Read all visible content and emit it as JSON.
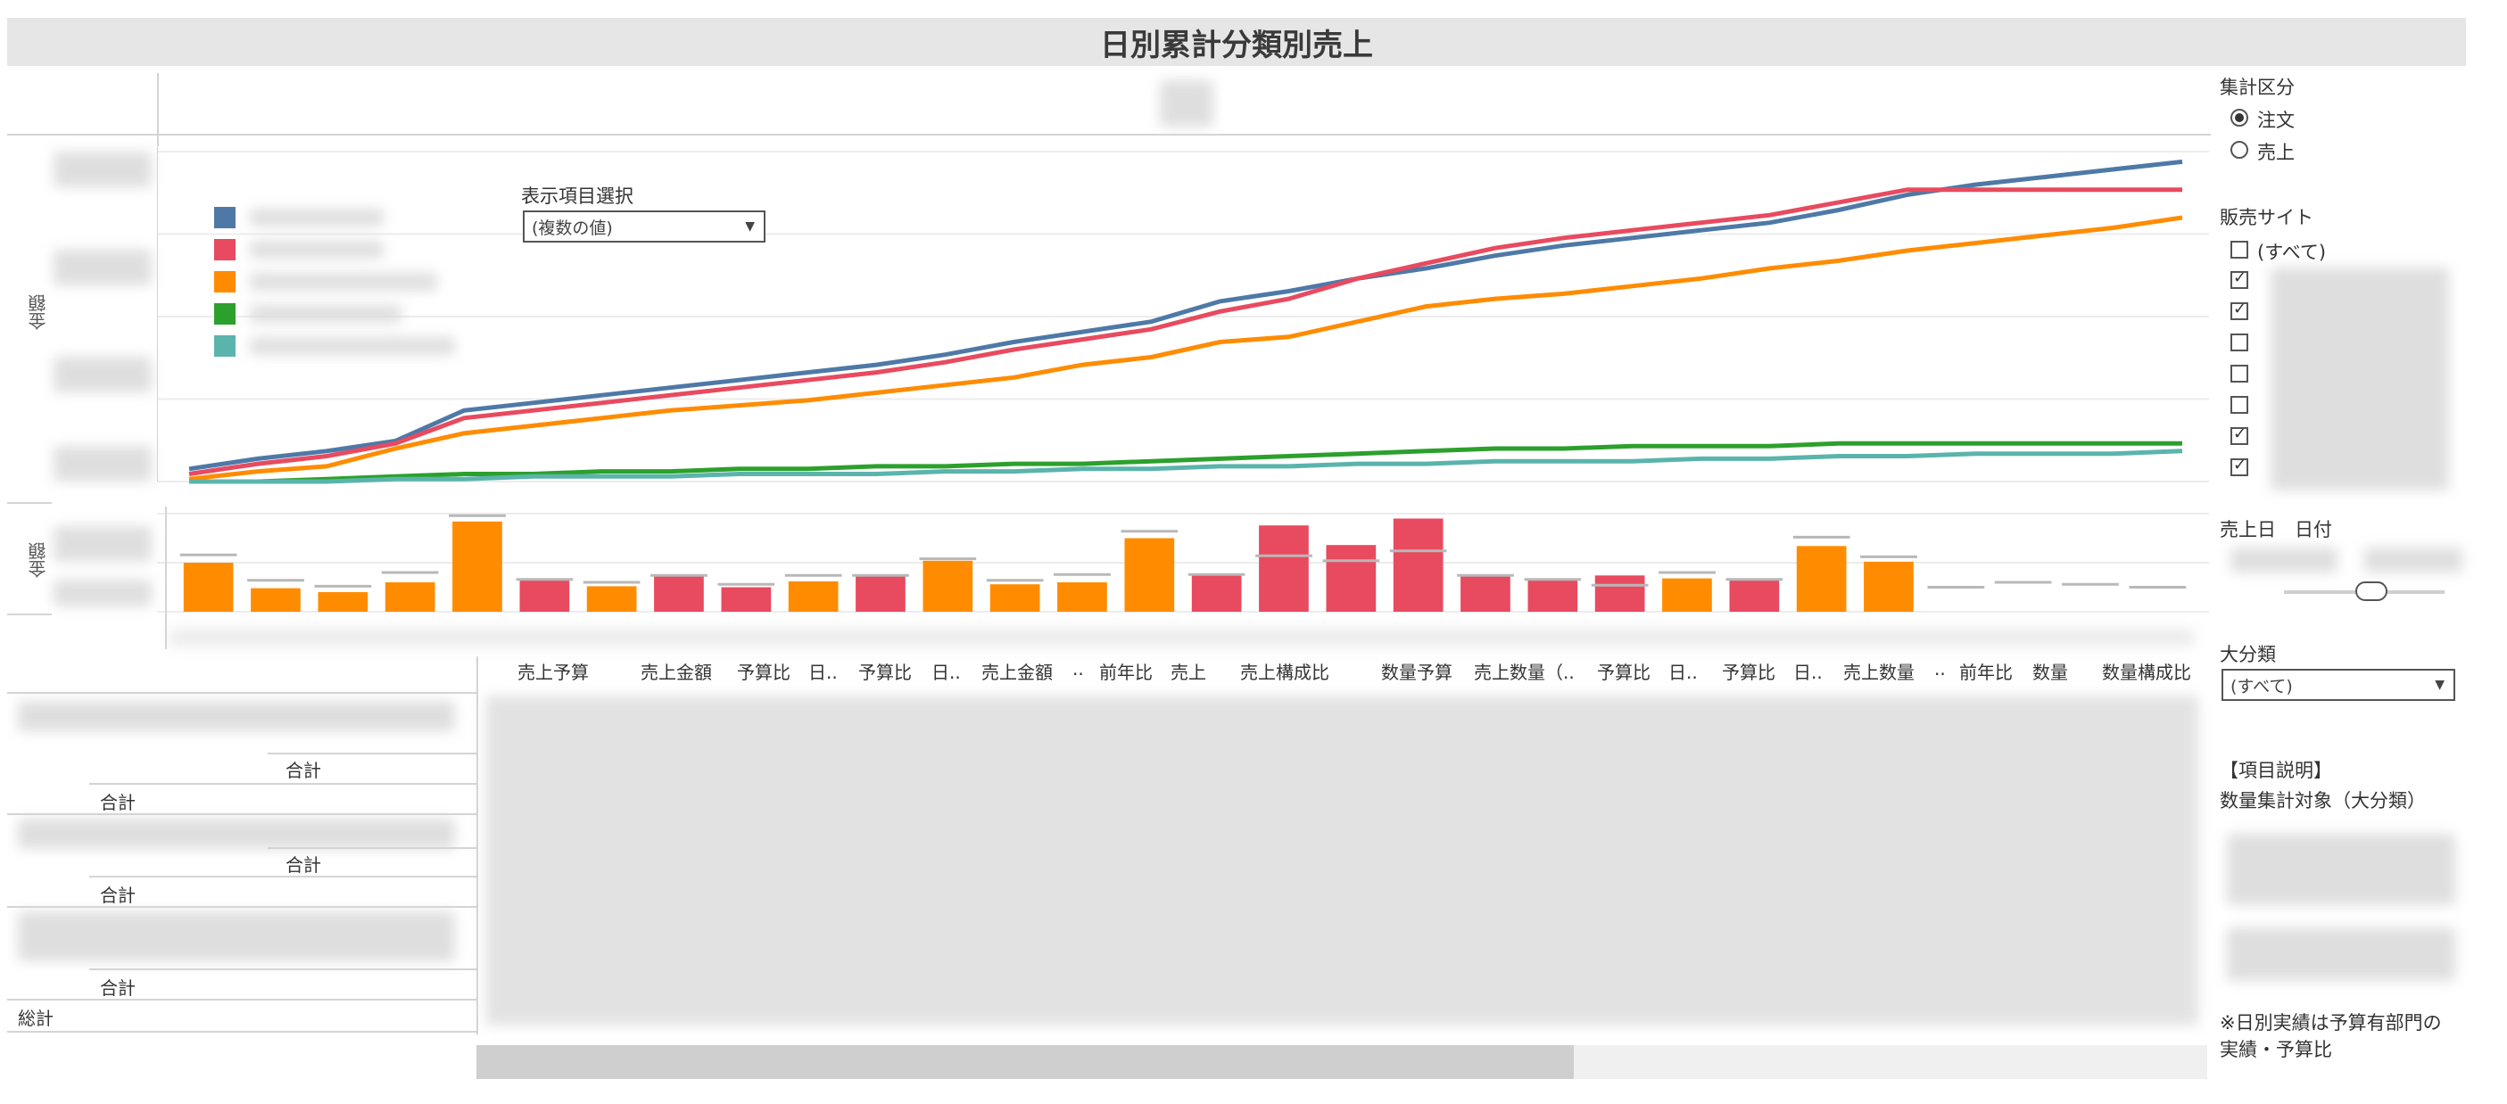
{
  "title": "日別累計分類別売上",
  "chart_top": {
    "y_label": "金額",
    "selector_label": "表示項目選択",
    "selector_value": "(複数の値)",
    "colors": [
      "#4e79a7",
      "#e84a5f",
      "#ff8c00",
      "#2ca02c",
      "#5ab4ac"
    ]
  },
  "chart_bottom": {
    "y_label": "金額"
  },
  "chart_data": [
    {
      "type": "line",
      "ylabel": "金額",
      "x": [
        1,
        2,
        3,
        4,
        5,
        6,
        7,
        8,
        9,
        10,
        11,
        12,
        13,
        14,
        15,
        16,
        17,
        18,
        19,
        20,
        21,
        22,
        23,
        24,
        25,
        26,
        27,
        28,
        29,
        30
      ],
      "series": [
        {
          "color": "#4e79a7",
          "values": [
            5,
            9,
            12,
            16,
            28,
            31,
            34,
            37,
            40,
            43,
            46,
            50,
            55,
            59,
            63,
            71,
            75,
            80,
            84,
            89,
            93,
            96,
            99,
            102,
            107,
            113,
            117,
            120,
            123,
            126
          ]
        },
        {
          "color": "#e84a5f",
          "values": [
            3,
            7,
            10,
            15,
            25,
            28,
            31,
            34,
            37,
            40,
            43,
            47,
            52,
            56,
            60,
            67,
            72,
            80,
            86,
            92,
            96,
            99,
            102,
            105,
            110,
            115,
            115,
            115,
            115,
            115
          ]
        },
        {
          "color": "#ff8c00",
          "values": [
            1,
            4,
            6,
            13,
            19,
            22,
            25,
            28,
            30,
            32,
            35,
            38,
            41,
            46,
            49,
            55,
            57,
            63,
            69,
            72,
            74,
            77,
            80,
            84,
            87,
            91,
            94,
            97,
            100,
            104
          ]
        },
        {
          "color": "#2ca02c",
          "values": [
            0,
            0,
            1,
            2,
            3,
            3,
            4,
            4,
            5,
            5,
            6,
            6,
            7,
            7,
            8,
            9,
            10,
            11,
            12,
            13,
            13,
            14,
            14,
            14,
            15,
            15,
            15,
            15,
            15,
            15
          ]
        },
        {
          "color": "#5ab4ac",
          "values": [
            0,
            0,
            0,
            1,
            1,
            2,
            2,
            2,
            3,
            3,
            3,
            4,
            4,
            5,
            5,
            6,
            6,
            7,
            7,
            8,
            8,
            8,
            9,
            9,
            10,
            10,
            11,
            11,
            11,
            12
          ]
        }
      ]
    },
    {
      "type": "bar",
      "ylabel": "金額",
      "x": [
        1,
        2,
        3,
        4,
        5,
        6,
        7,
        8,
        9,
        10,
        11,
        12,
        13,
        14,
        15,
        16,
        17,
        18,
        19,
        20,
        21,
        22,
        23,
        24,
        25,
        26,
        27,
        28,
        29,
        30
      ],
      "values": [
        50,
        24,
        20,
        30,
        92,
        32,
        26,
        36,
        25,
        31,
        37,
        52,
        28,
        30,
        75,
        38,
        88,
        68,
        95,
        37,
        32,
        37,
        34,
        32,
        67,
        51,
        0,
        0,
        0,
        0
      ],
      "colors": [
        "#ff8c00",
        "#ff8c00",
        "#ff8c00",
        "#ff8c00",
        "#ff8c00",
        "#e84a5f",
        "#ff8c00",
        "#e84a5f",
        "#e84a5f",
        "#ff8c00",
        "#e84a5f",
        "#ff8c00",
        "#ff8c00",
        "#ff8c00",
        "#ff8c00",
        "#e84a5f",
        "#e84a5f",
        "#e84a5f",
        "#e84a5f",
        "#e84a5f",
        "#e84a5f",
        "#e84a5f",
        "#ff8c00",
        "#e84a5f",
        "#ff8c00",
        "#ff8c00",
        "#ff8c00",
        "#ff8c00",
        "#ff8c00",
        "#ff8c00"
      ],
      "reference": [
        58,
        32,
        26,
        40,
        98,
        33,
        30,
        37,
        28,
        37,
        37,
        54,
        32,
        38,
        82,
        38,
        57,
        52,
        62,
        37,
        33,
        27,
        40,
        33,
        76,
        56,
        25,
        30,
        28,
        25
      ]
    }
  ],
  "table": {
    "columns": [
      "売上予算",
      "売上金額",
      "予算比",
      "日..",
      "予算比",
      "日..",
      "売上金額",
      "..",
      "前年比",
      "売上",
      "売上構成比",
      "数量予算",
      "売上数量（..",
      "予算比",
      "日..",
      "予算比",
      "日..",
      "売上数量",
      "..",
      "前年比",
      "数量",
      "数量構成比"
    ],
    "rows": [
      {
        "label": "合計",
        "indent": "inner"
      },
      {
        "label": "合計",
        "indent": "outer"
      },
      {
        "label": "合計",
        "indent": "inner"
      },
      {
        "label": "合計",
        "indent": "outer"
      },
      {
        "label": "合計",
        "indent": "outer"
      },
      {
        "label": "総計",
        "indent": "grand"
      }
    ]
  },
  "sidebar": {
    "aggregation": {
      "title": "集計区分",
      "options": [
        {
          "label": "注文",
          "selected": true
        },
        {
          "label": "売上",
          "selected": false
        }
      ]
    },
    "site": {
      "title": "販売サイト",
      "all_label": "(すべて)",
      "checks": [
        true,
        true,
        false,
        false,
        false,
        true,
        true
      ]
    },
    "date": {
      "title": "売上日　日付"
    },
    "category": {
      "title": "大分類",
      "value": "(すべて)"
    },
    "desc": {
      "title": "【項目説明】",
      "line1": "数量集計対象（大分類）",
      "note1": "※日別実績は予算有部門の",
      "note2": "実績・予算比"
    }
  }
}
